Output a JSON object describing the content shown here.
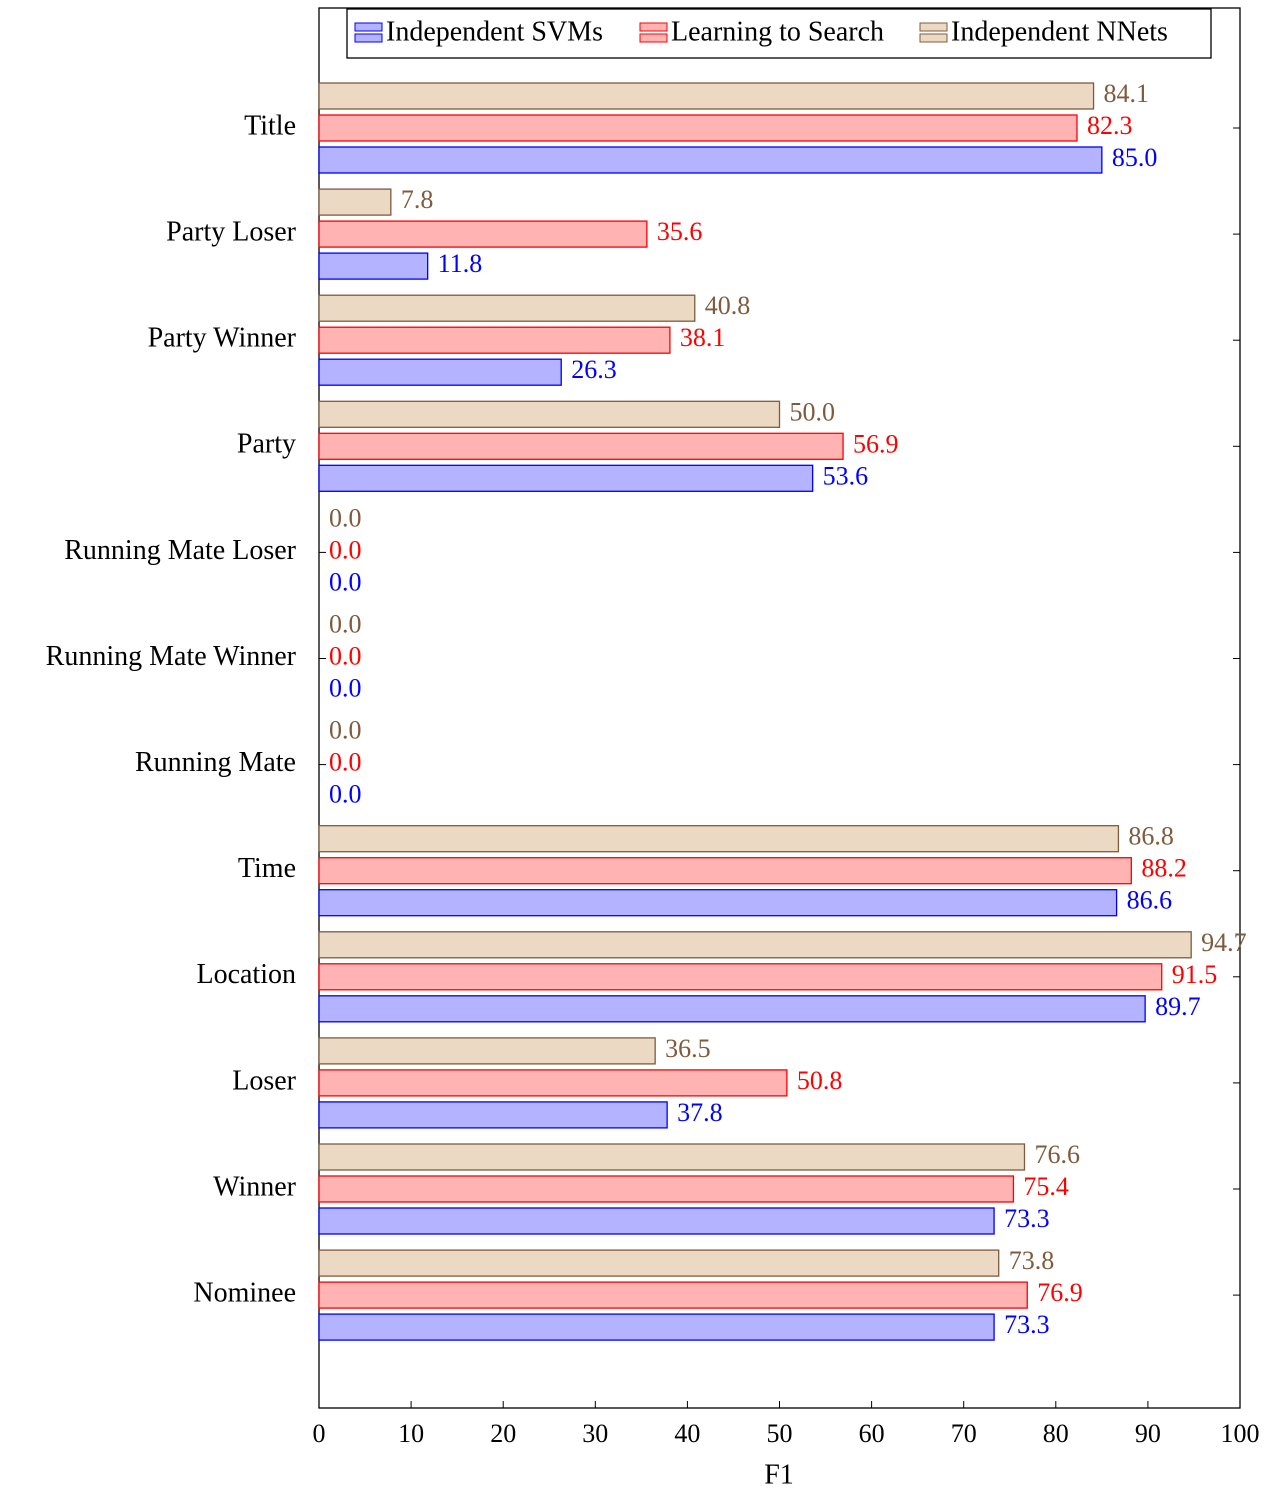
{
  "chart_data": {
    "type": "bar",
    "orientation": "horizontal",
    "categories": [
      "Title",
      "Party Loser",
      "Party Winner",
      "Party",
      "Running Mate Loser",
      "Running Mate Winner",
      "Running Mate",
      "Time",
      "Location",
      "Loser",
      "Winner",
      "Nominee"
    ],
    "series": [
      {
        "name": "Independent SVMs",
        "color": "#0000ff",
        "fill": "#b3b3ff",
        "values": [
          85.0,
          11.8,
          26.3,
          53.6,
          0,
          0,
          0,
          86.6,
          89.7,
          37.8,
          73.3,
          73.3
        ],
        "value_labels": [
          "85.0",
          "11.8",
          "26.3",
          "53.6",
          "0.0",
          "0.0",
          "0.0",
          "86.6",
          "89.7",
          "37.8",
          "73.3",
          "73.3"
        ]
      },
      {
        "name": "Learning to Search",
        "color": "#ff0000",
        "fill": "#ffb3b3",
        "values": [
          82.3,
          35.6,
          38.1,
          56.9,
          0,
          0,
          0,
          88.2,
          91.5,
          50.8,
          75.4,
          76.9
        ],
        "value_labels": [
          "82.3",
          "35.6",
          "38.1",
          "56.9",
          "0.0",
          "0.0",
          "0.0",
          "88.2",
          "91.5",
          "50.8",
          "75.4",
          "76.9"
        ]
      },
      {
        "name": "Independent NNets",
        "color": "#7f5b3d",
        "fill": "#ebd9c4",
        "values": [
          84.1,
          7.8,
          40.8,
          50.0,
          0,
          0,
          0,
          86.8,
          94.7,
          36.5,
          76.6,
          73.8
        ],
        "value_labels": [
          "84.1",
          "7.8",
          "40.8",
          "50.0",
          "0.0",
          "0.0",
          "0.0",
          "86.8",
          "94.7",
          "36.5",
          "76.6",
          "73.8"
        ]
      }
    ],
    "xlabel": "F1",
    "xlim": [
      0,
      100
    ],
    "xticks": [
      0,
      10,
      20,
      30,
      40,
      50,
      60,
      70,
      80,
      90,
      100
    ],
    "legend": "top"
  }
}
